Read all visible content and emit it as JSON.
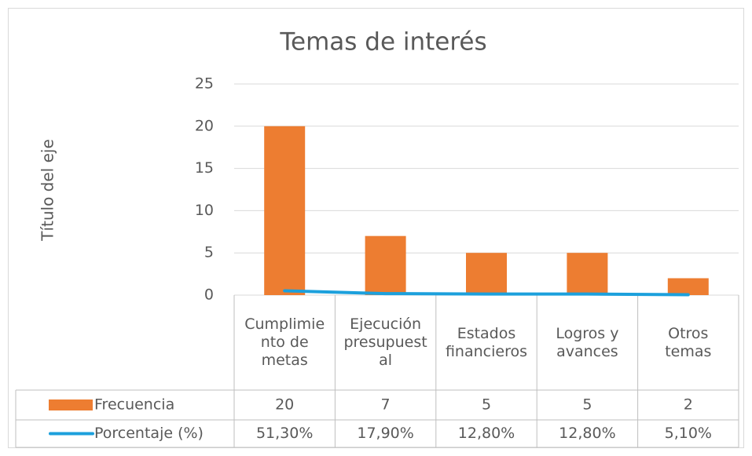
{
  "chart_data": {
    "type": "bar",
    "title": "Temas de interés",
    "y_label": "Título del eje",
    "categories": [
      "Cumplimiento de metas",
      "Ejecución presupuestal",
      "Estados financieros",
      "Logros y avances",
      "Otros temas"
    ],
    "series": [
      {
        "name": "Frecuencia",
        "type": "bar",
        "color": "#ed7d31",
        "values": [
          20,
          7,
          5,
          5,
          2
        ]
      },
      {
        "name": "Porcentaje (%)",
        "type": "line",
        "color": "#1ca0dc",
        "values": [
          0.513,
          0.179,
          0.128,
          0.128,
          0.051
        ],
        "value_labels": [
          "51,30%",
          "17,90%",
          "12,80%",
          "12,80%",
          "5,10%"
        ]
      }
    ],
    "ylim": [
      0,
      25
    ],
    "yticks": [
      0,
      5,
      10,
      15,
      20,
      25
    ],
    "grid": true,
    "data_table": true
  }
}
